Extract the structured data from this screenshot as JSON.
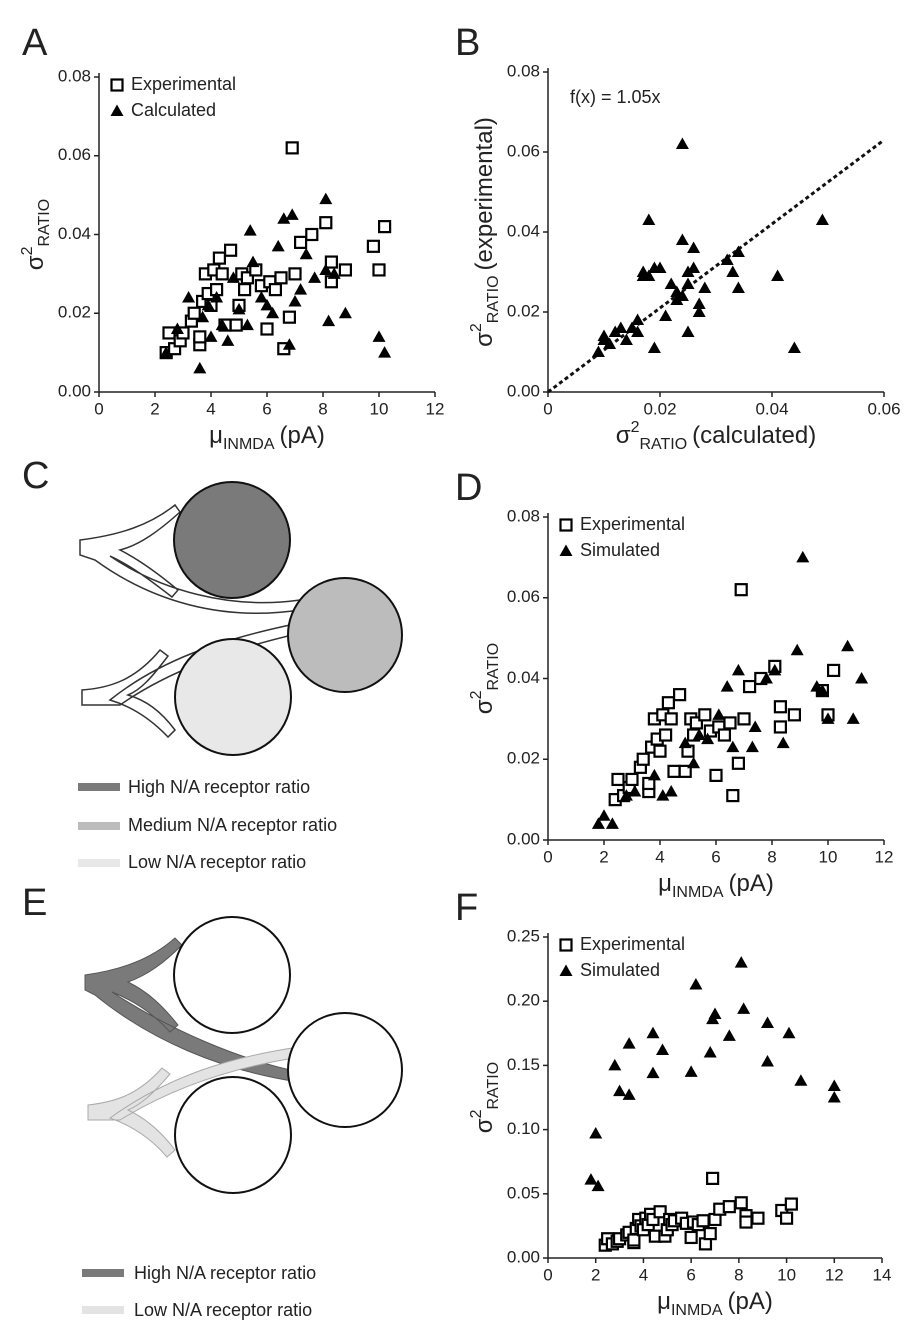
{
  "chart_data": [
    {
      "type": "scatter",
      "panel": "A",
      "legend": "upper left",
      "xlabel": {
        "main": "μ",
        "sub": "INMDA",
        "tail": "(pA)"
      },
      "ylabel": {
        "main": "σ",
        "sup": "2",
        "sub": "RATIO"
      },
      "xlim": [
        0,
        12
      ],
      "ylim": [
        0,
        0.08
      ],
      "xticks": [
        0,
        2,
        4,
        6,
        8,
        10,
        12
      ],
      "yticks": [
        {
          "value": 0,
          "label": "0.00"
        },
        {
          "value": 0.02,
          "label": "0.02"
        },
        {
          "value": 0.04,
          "label": "0.04"
        },
        {
          "value": 0.06,
          "label": "0.06"
        },
        {
          "value": 0.08,
          "label": "0.08"
        }
      ],
      "series": [
        {
          "name": "Experimental",
          "marker": "square",
          "color": "#000000",
          "x": [
            2.4,
            2.5,
            2.7,
            2.9,
            3.0,
            3.3,
            3.4,
            3.6,
            3.6,
            3.7,
            3.8,
            3.9,
            4.0,
            4.1,
            4.2,
            4.3,
            4.4,
            4.5,
            4.7,
            4.9,
            5.0,
            5.1,
            5.2,
            5.3,
            5.6,
            5.8,
            6.0,
            6.1,
            6.3,
            6.5,
            6.6,
            6.8,
            6.9,
            7.0,
            7.2,
            7.6,
            8.1,
            8.3,
            8.3,
            8.8,
            9.8,
            10.0,
            10.2
          ],
          "values": [
            0.01,
            0.015,
            0.011,
            0.013,
            0.015,
            0.018,
            0.02,
            0.012,
            0.014,
            0.023,
            0.03,
            0.025,
            0.022,
            0.031,
            0.026,
            0.034,
            0.03,
            0.017,
            0.036,
            0.017,
            0.022,
            0.03,
            0.026,
            0.029,
            0.031,
            0.027,
            0.016,
            0.028,
            0.026,
            0.029,
            0.011,
            0.019,
            0.062,
            0.03,
            0.038,
            0.04,
            0.043,
            0.033,
            0.028,
            0.031,
            0.037,
            0.031,
            0.042
          ]
        },
        {
          "name": "Calculated",
          "marker": "triangle",
          "color": "#000000",
          "x": [
            2.4,
            2.8,
            3.2,
            3.6,
            3.7,
            3.9,
            4.0,
            4.2,
            4.4,
            4.6,
            4.8,
            5.0,
            5.3,
            5.4,
            5.5,
            5.8,
            6.0,
            6.2,
            6.4,
            6.6,
            6.8,
            6.9,
            7.0,
            7.2,
            7.4,
            7.7,
            8.1,
            8.2,
            8.4,
            8.8,
            10.0,
            10.2,
            8.1
          ],
          "values": [
            0.01,
            0.016,
            0.024,
            0.006,
            0.019,
            0.022,
            0.014,
            0.024,
            0.017,
            0.013,
            0.029,
            0.021,
            0.017,
            0.041,
            0.033,
            0.024,
            0.022,
            0.02,
            0.037,
            0.044,
            0.012,
            0.045,
            0.023,
            0.026,
            0.035,
            0.029,
            0.049,
            0.018,
            0.03,
            0.02,
            0.014,
            0.01,
            0.031
          ]
        }
      ]
    },
    {
      "type": "scatter",
      "panel": "B",
      "xlabel": {
        "main": "σ",
        "sup": "2",
        "sub": "RATIO",
        "tail": "(calculated)"
      },
      "ylabel": {
        "main": "σ",
        "sup": "2",
        "sub": "RATIO",
        "tail": "(experimental)"
      },
      "fit": {
        "label": "f(x) = 1.05x",
        "slope": 1.05
      },
      "xlim": [
        0,
        0.06
      ],
      "ylim": [
        0,
        0.08
      ],
      "xticks": [
        0,
        0.02,
        0.04,
        0.06
      ],
      "yticks": [
        {
          "value": 0,
          "label": "0.00"
        },
        {
          "value": 0.02,
          "label": "0.02"
        },
        {
          "value": 0.04,
          "label": "0.04"
        },
        {
          "value": 0.06,
          "label": "0.06"
        },
        {
          "value": 0.08,
          "label": "0.08"
        }
      ],
      "series": [
        {
          "marker": "triangle",
          "color": "#000000",
          "x": [
            0.009,
            0.01,
            0.01,
            0.011,
            0.012,
            0.013,
            0.014,
            0.015,
            0.016,
            0.016,
            0.017,
            0.017,
            0.018,
            0.018,
            0.019,
            0.019,
            0.02,
            0.021,
            0.022,
            0.023,
            0.023,
            0.024,
            0.024,
            0.024,
            0.025,
            0.025,
            0.026,
            0.026,
            0.025,
            0.027,
            0.027,
            0.028,
            0.032,
            0.033,
            0.034,
            0.034,
            0.041,
            0.044,
            0.049
          ],
          "values": [
            0.01,
            0.013,
            0.014,
            0.012,
            0.015,
            0.016,
            0.013,
            0.016,
            0.015,
            0.018,
            0.029,
            0.03,
            0.029,
            0.043,
            0.031,
            0.011,
            0.031,
            0.019,
            0.027,
            0.023,
            0.025,
            0.062,
            0.024,
            0.038,
            0.027,
            0.03,
            0.031,
            0.036,
            0.015,
            0.022,
            0.02,
            0.026,
            0.033,
            0.03,
            0.026,
            0.035,
            0.029,
            0.011,
            0.043
          ]
        }
      ]
    },
    {
      "type": "scatter",
      "panel": "D",
      "legend": "upper left",
      "xlabel": {
        "main": "μ",
        "sub": "INMDA",
        "tail": "(pA)"
      },
      "ylabel": {
        "main": "σ",
        "sup": "2",
        "sub": "RATIO"
      },
      "xlim": [
        0,
        12
      ],
      "ylim": [
        0,
        0.08
      ],
      "xticks": [
        0,
        2,
        4,
        6,
        8,
        10,
        12
      ],
      "yticks": [
        {
          "value": 0,
          "label": "0.00"
        },
        {
          "value": 0.02,
          "label": "0.02"
        },
        {
          "value": 0.04,
          "label": "0.04"
        },
        {
          "value": 0.06,
          "label": "0.06"
        },
        {
          "value": 0.08,
          "label": "0.08"
        }
      ],
      "series": [
        {
          "name": "Experimental",
          "marker": "square",
          "color": "#000000",
          "x": [
            2.4,
            2.5,
            2.7,
            2.9,
            3.0,
            3.3,
            3.4,
            3.6,
            3.6,
            3.7,
            3.8,
            3.9,
            4.0,
            4.1,
            4.2,
            4.3,
            4.4,
            4.5,
            4.7,
            4.9,
            5.0,
            5.1,
            5.2,
            5.3,
            5.6,
            5.8,
            6.0,
            6.1,
            6.3,
            6.5,
            6.6,
            6.8,
            6.9,
            7.0,
            7.2,
            7.6,
            8.1,
            8.3,
            8.3,
            8.8,
            9.8,
            10.0,
            10.2
          ],
          "values": [
            0.01,
            0.015,
            0.011,
            0.013,
            0.015,
            0.018,
            0.02,
            0.012,
            0.014,
            0.023,
            0.03,
            0.025,
            0.022,
            0.031,
            0.026,
            0.034,
            0.03,
            0.017,
            0.036,
            0.017,
            0.022,
            0.03,
            0.026,
            0.029,
            0.031,
            0.027,
            0.016,
            0.028,
            0.026,
            0.029,
            0.011,
            0.019,
            0.062,
            0.03,
            0.038,
            0.04,
            0.043,
            0.033,
            0.028,
            0.031,
            0.037,
            0.031,
            0.042
          ]
        },
        {
          "name": "Simulated",
          "marker": "triangle",
          "color": "#000000",
          "x": [
            1.8,
            2.0,
            2.3,
            2.8,
            3.1,
            3.8,
            4.1,
            4.4,
            4.9,
            5.2,
            5.4,
            5.7,
            6.1,
            6.4,
            6.8,
            7.4,
            7.8,
            8.1,
            8.4,
            8.9,
            9.1,
            9.6,
            9.8,
            10.0,
            10.7,
            10.9,
            11.2,
            6.6,
            7.3
          ],
          "values": [
            0.004,
            0.006,
            0.004,
            0.011,
            0.012,
            0.016,
            0.011,
            0.012,
            0.024,
            0.019,
            0.026,
            0.025,
            0.031,
            0.038,
            0.042,
            0.028,
            0.04,
            0.042,
            0.024,
            0.047,
            0.07,
            0.038,
            0.037,
            0.03,
            0.048,
            0.03,
            0.04,
            0.023,
            0.023
          ]
        }
      ]
    },
    {
      "type": "scatter",
      "panel": "F",
      "legend": "upper left",
      "xlabel": {
        "main": "μ",
        "sub": "INMDA",
        "tail": "(pA)"
      },
      "ylabel": {
        "main": "σ",
        "sup": "2",
        "sub": "RATIO"
      },
      "xlim": [
        0,
        14
      ],
      "ylim": [
        0,
        0.25
      ],
      "xticks": [
        0,
        2,
        4,
        6,
        8,
        10,
        12,
        14
      ],
      "yticks": [
        {
          "value": 0,
          "label": "0.00"
        },
        {
          "value": 0.05,
          "label": "0.05"
        },
        {
          "value": 0.1,
          "label": "0.10"
        },
        {
          "value": 0.15,
          "label": "0.15"
        },
        {
          "value": 0.2,
          "label": "0.20"
        },
        {
          "value": 0.25,
          "label": "0.25"
        }
      ],
      "series": [
        {
          "name": "Experimental",
          "marker": "square",
          "color": "#000000",
          "x": [
            2.4,
            2.5,
            2.7,
            2.9,
            3.0,
            3.3,
            3.4,
            3.6,
            3.6,
            3.7,
            3.8,
            3.9,
            4.0,
            4.1,
            4.2,
            4.3,
            4.4,
            4.5,
            4.7,
            4.9,
            5.0,
            5.1,
            5.2,
            5.3,
            5.6,
            5.8,
            6.0,
            6.1,
            6.3,
            6.5,
            6.6,
            6.8,
            6.9,
            7.0,
            7.2,
            7.6,
            8.1,
            8.3,
            8.3,
            8.8,
            9.8,
            10.0,
            10.2
          ],
          "values": [
            0.01,
            0.015,
            0.011,
            0.013,
            0.015,
            0.018,
            0.02,
            0.012,
            0.014,
            0.023,
            0.03,
            0.025,
            0.022,
            0.031,
            0.026,
            0.034,
            0.03,
            0.017,
            0.036,
            0.017,
            0.022,
            0.03,
            0.026,
            0.029,
            0.031,
            0.027,
            0.016,
            0.028,
            0.026,
            0.029,
            0.011,
            0.019,
            0.062,
            0.03,
            0.038,
            0.04,
            0.043,
            0.033,
            0.028,
            0.031,
            0.037,
            0.031,
            0.042
          ]
        },
        {
          "name": "Simulated",
          "marker": "triangle",
          "color": "#000000",
          "x": [
            1.8,
            2.0,
            2.1,
            2.8,
            3.0,
            3.4,
            3.4,
            4.4,
            4.4,
            4.8,
            6.0,
            6.2,
            6.8,
            6.9,
            7.0,
            7.6,
            8.1,
            8.2,
            9.2,
            9.2,
            10.1,
            10.6,
            12.0,
            12.0
          ],
          "values": [
            0.061,
            0.097,
            0.056,
            0.15,
            0.13,
            0.167,
            0.127,
            0.144,
            0.175,
            0.162,
            0.145,
            0.213,
            0.16,
            0.186,
            0.19,
            0.173,
            0.23,
            0.194,
            0.183,
            0.153,
            0.175,
            0.138,
            0.134,
            0.125
          ]
        }
      ]
    }
  ],
  "diagrams": [
    {
      "panel": "C",
      "legend": [
        "High N/A receptor ratio",
        "Medium N/A receptor ratio",
        "Low N/A receptor ratio"
      ]
    },
    {
      "panel": "E",
      "legend": [
        "High N/A receptor ratio",
        "Low N/A receptor ratio"
      ]
    }
  ]
}
